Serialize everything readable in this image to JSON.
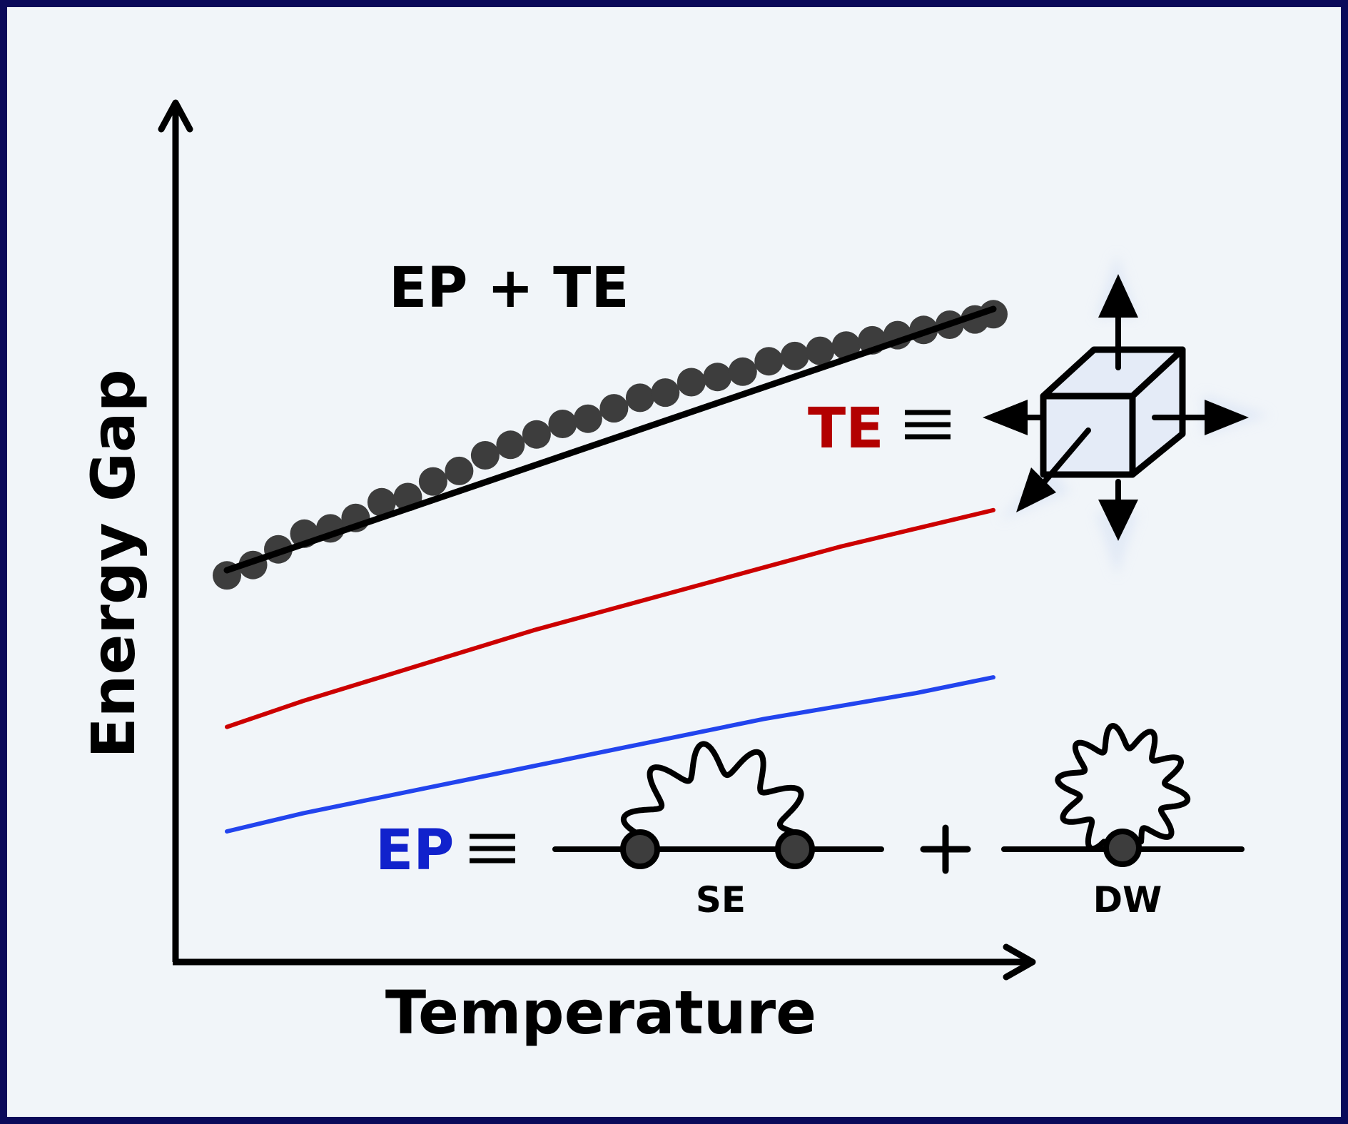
{
  "axes": {
    "x_label": "Temperature",
    "y_label": "Energy Gap"
  },
  "annotations": {
    "combined_label": "EP + TE",
    "te_label": "TE",
    "ep_label": "EP",
    "equiv_symbol": "≡",
    "plus_symbol": "+",
    "se_label": "SE",
    "dw_label": "DW"
  },
  "colors": {
    "background": "#f1f5f9",
    "frame": "#0a0a5a",
    "axis": "#000000",
    "points": "#3d3d3d",
    "fit_line": "#000000",
    "te_line": "#cc0000",
    "ep_line": "#2244ee",
    "te_label": "#b30000",
    "ep_label": "#1122cc",
    "cube_fill": "#e4ebf7",
    "cube_glow": "#dde6f5"
  },
  "icons": {
    "cube": "thermal-expansion-cube-icon",
    "self_energy": "self-energy-feynman-diagram-icon",
    "debye_waller": "debye-waller-feynman-diagram-icon"
  },
  "chart_data": {
    "type": "line",
    "xlabel": "Temperature",
    "ylabel": "Energy Gap",
    "series": [
      {
        "name": "EP + TE",
        "kind": "scatter",
        "x": [
          0.0,
          0.034,
          0.067,
          0.101,
          0.135,
          0.168,
          0.202,
          0.236,
          0.269,
          0.303,
          0.337,
          0.37,
          0.404,
          0.438,
          0.471,
          0.505,
          0.539,
          0.572,
          0.606,
          0.64,
          0.673,
          0.707,
          0.741,
          0.774,
          0.808,
          0.842,
          0.875,
          0.909,
          0.943,
          0.976,
          1.0
        ],
        "y": [
          0.74,
          0.76,
          0.79,
          0.82,
          0.83,
          0.85,
          0.88,
          0.89,
          0.92,
          0.94,
          0.97,
          0.99,
          1.01,
          1.03,
          1.04,
          1.06,
          1.08,
          1.09,
          1.11,
          1.12,
          1.13,
          1.15,
          1.16,
          1.17,
          1.18,
          1.19,
          1.2,
          1.21,
          1.22,
          1.23,
          1.24
        ]
      },
      {
        "name": "EP + TE",
        "kind": "fit",
        "x": [
          0.0,
          1.0
        ],
        "y": [
          0.75,
          1.25
        ]
      },
      {
        "name": "TE",
        "kind": "line",
        "x": [
          0.0,
          0.1,
          0.2,
          0.3,
          0.4,
          0.5,
          0.6,
          0.7,
          0.8,
          0.9,
          1.0
        ],
        "y": [
          0.45,
          0.5,
          0.545,
          0.59,
          0.635,
          0.675,
          0.715,
          0.755,
          0.795,
          0.83,
          0.865
        ]
      },
      {
        "name": "EP",
        "kind": "line",
        "x": [
          0.0,
          0.1,
          0.2,
          0.3,
          0.4,
          0.5,
          0.6,
          0.7,
          0.8,
          0.9,
          1.0
        ],
        "y": [
          0.25,
          0.285,
          0.315,
          0.345,
          0.375,
          0.405,
          0.435,
          0.465,
          0.49,
          0.515,
          0.545
        ]
      }
    ],
    "xlim": [
      0.0,
      1.0
    ],
    "ylim": [
      0.0,
      1.4
    ],
    "grid": false,
    "ticks": "none"
  }
}
